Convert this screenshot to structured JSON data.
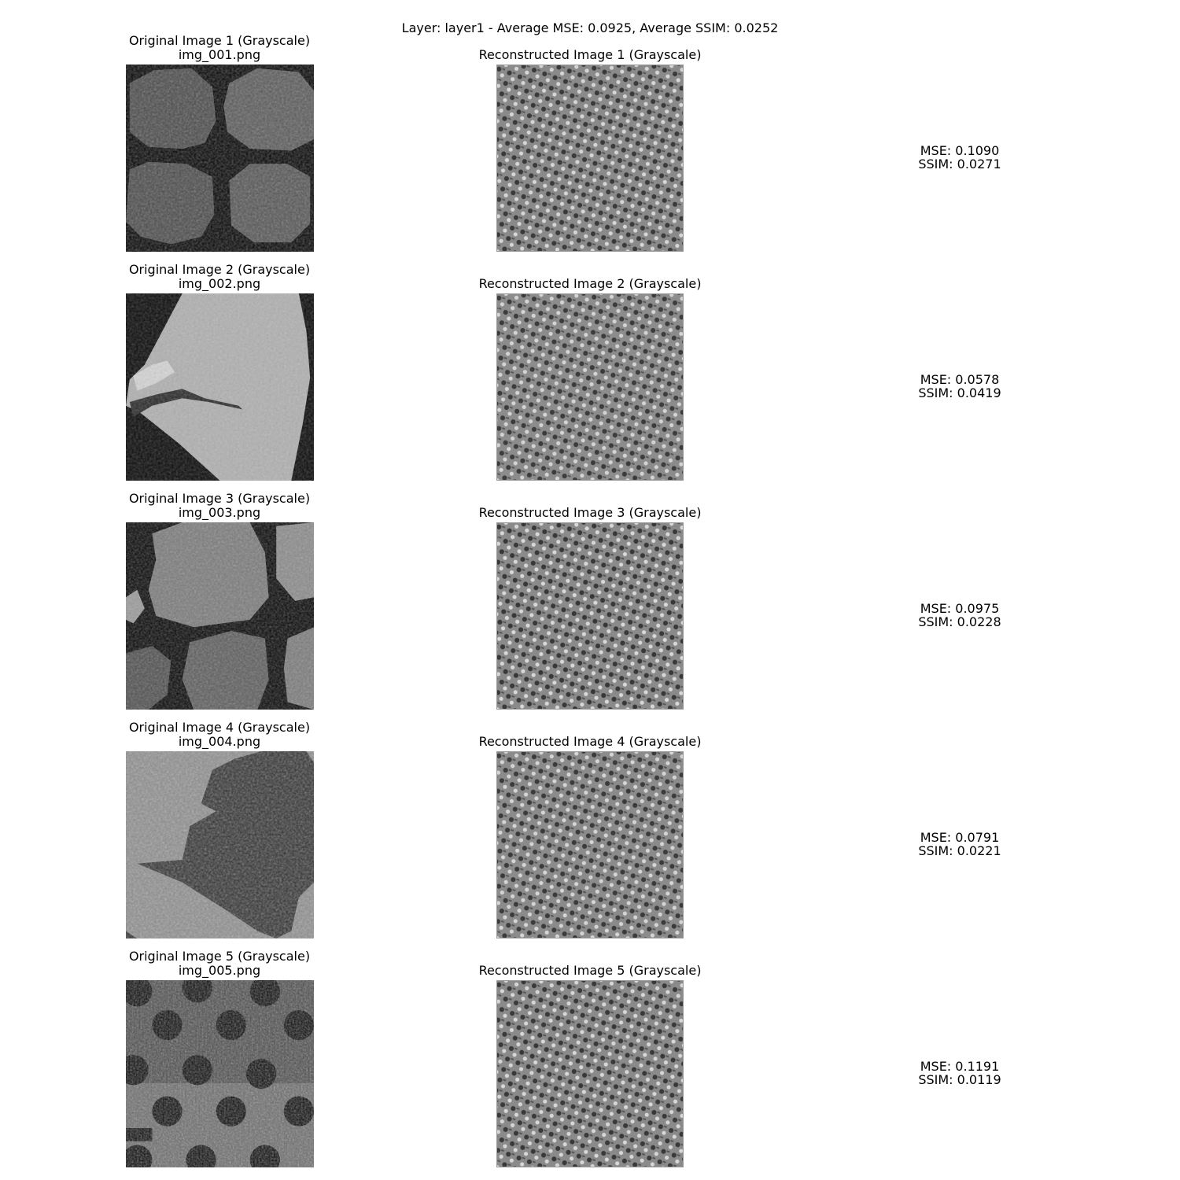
{
  "figure": {
    "title": "Layer: layer1 - Average MSE: 0.0925, Average SSIM: 0.0252"
  },
  "rows": [
    {
      "original_title": "Original Image 1 (Grayscale)",
      "filename": "img_001.png",
      "reconstructed_title": "Reconstructed Image 1 (Grayscale)",
      "mse_text": "MSE: 0.1090",
      "ssim_text": "SSIM: 0.0271",
      "mse": 0.109,
      "ssim": 0.0271
    },
    {
      "original_title": "Original Image 2 (Grayscale)",
      "filename": "img_002.png",
      "reconstructed_title": "Reconstructed Image 2 (Grayscale)",
      "mse_text": "MSE: 0.0578",
      "ssim_text": "SSIM: 0.0419",
      "mse": 0.0578,
      "ssim": 0.0419
    },
    {
      "original_title": "Original Image 3 (Grayscale)",
      "filename": "img_003.png",
      "reconstructed_title": "Reconstructed Image 3 (Grayscale)",
      "mse_text": "MSE: 0.0975",
      "ssim_text": "SSIM: 0.0228",
      "mse": 0.0975,
      "ssim": 0.0228
    },
    {
      "original_title": "Original Image 4 (Grayscale)",
      "filename": "img_004.png",
      "reconstructed_title": "Reconstructed Image 4 (Grayscale)",
      "mse_text": "MSE: 0.0791",
      "ssim_text": "SSIM: 0.0221",
      "mse": 0.0791,
      "ssim": 0.0221
    },
    {
      "original_title": "Original Image 5 (Grayscale)",
      "filename": "img_005.png",
      "reconstructed_title": "Reconstructed Image 5 (Grayscale)",
      "mse_text": "MSE: 0.1191",
      "ssim_text": "SSIM: 0.0119",
      "mse": 0.1191,
      "ssim": 0.0119
    }
  ]
}
